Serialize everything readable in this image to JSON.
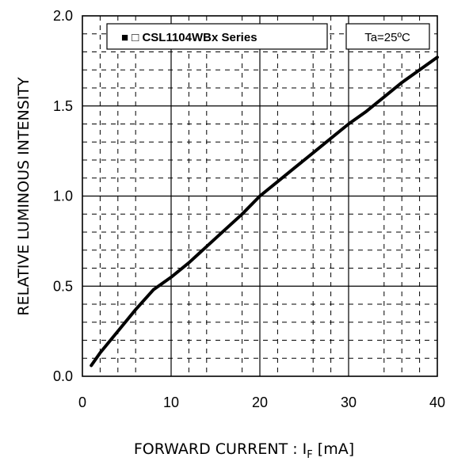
{
  "chart_data": {
    "type": "line",
    "xlabel_prefix": "FORWARD CURRENT : I",
    "xlabel_subscript": "F",
    "xlabel_suffix": " [mA]",
    "ylabel": "RELATIVE LUMINOUS INTENSITY",
    "xlim": [
      0,
      40
    ],
    "ylim": [
      0.0,
      2.0
    ],
    "x_ticks": [
      "0",
      "10",
      "20",
      "30",
      "40"
    ],
    "y_ticks": [
      "0.0",
      "0.5",
      "1.0",
      "1.5",
      "2.0"
    ],
    "grid": true,
    "legend": {
      "label": "■ □ CSL1104WBx Series",
      "condition": "Ta=25ºC",
      "placement": "top"
    },
    "series": [
      {
        "x": [
          1,
          2,
          4,
          6,
          8,
          10,
          12,
          14,
          16,
          18,
          20,
          22,
          24,
          26,
          28,
          30,
          32,
          34,
          36,
          38,
          40
        ],
        "values": [
          0.06,
          0.13,
          0.25,
          0.37,
          0.48,
          0.55,
          0.63,
          0.72,
          0.81,
          0.9,
          1.0,
          1.08,
          1.16,
          1.24,
          1.32,
          1.4,
          1.47,
          1.55,
          1.63,
          1.7,
          1.77
        ],
        "color": "#000000"
      }
    ]
  }
}
